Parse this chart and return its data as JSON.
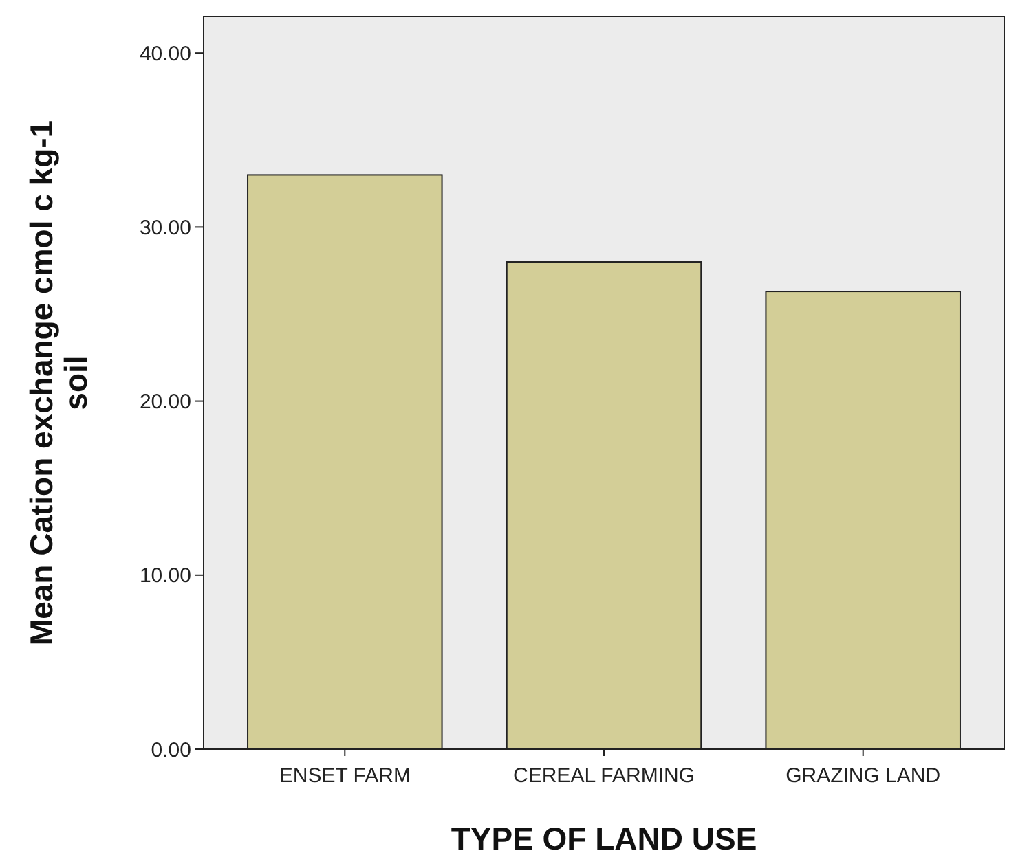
{
  "chart_data": {
    "type": "bar",
    "xlabel": "TYPE OF LAND USE",
    "ylabel": "Mean Cation exchange cmol c kg-1 soil",
    "categories": [
      "ENSET FARM",
      "CEREAL FARMING",
      "GRAZING LAND"
    ],
    "values": [
      33.0,
      28.0,
      26.3
    ],
    "color": "#d3ce97",
    "ylim": [
      0,
      42.1
    ],
    "yticks": [
      {
        "value": 0,
        "label": "0.00"
      },
      {
        "value": 10,
        "label": "10.00"
      },
      {
        "value": 20,
        "label": "20.00"
      },
      {
        "value": 30,
        "label": "30.00"
      },
      {
        "value": 40,
        "label": "40.00"
      }
    ],
    "grid": false
  }
}
